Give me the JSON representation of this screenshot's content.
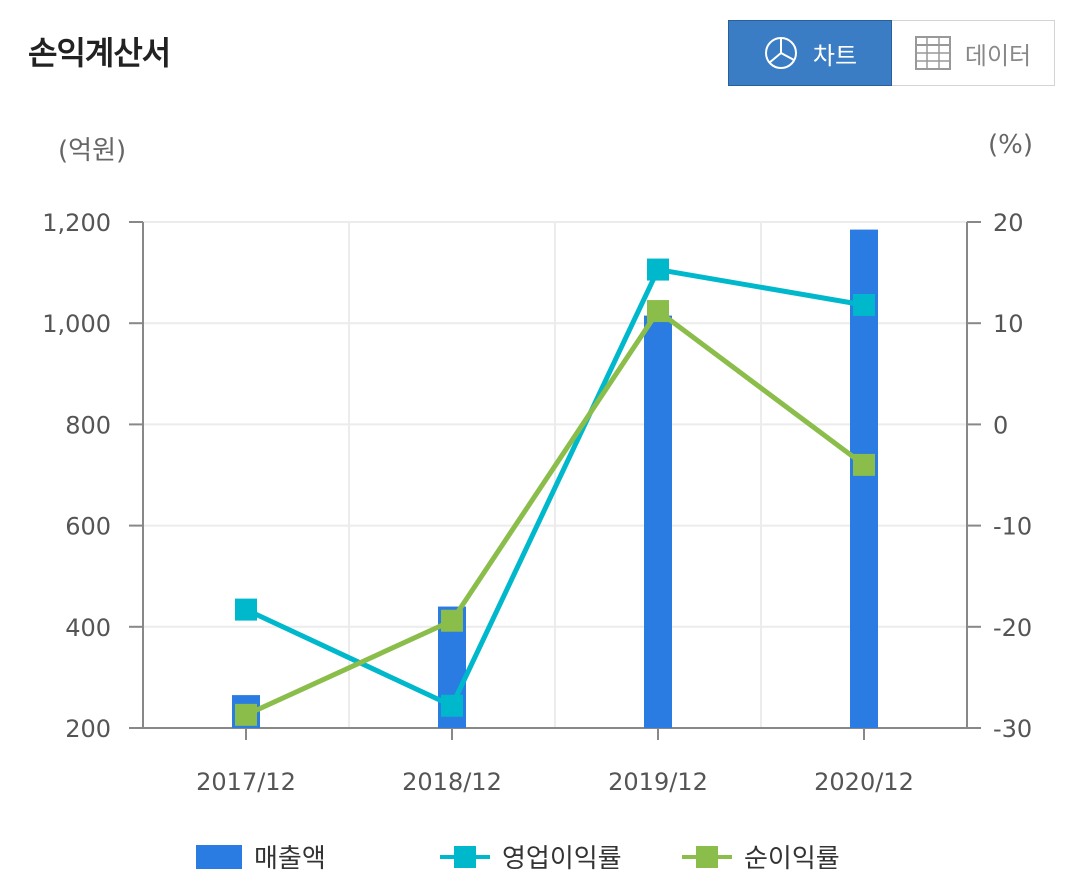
{
  "header": {
    "title": "손익계산서",
    "chart_tab_label": "차트",
    "data_tab_label": "데이터",
    "chart_tab_icon": "pie-chart-icon",
    "data_tab_icon": "table-grid-icon"
  },
  "colors": {
    "revenue": "#2a7be2",
    "operating_margin": "#00b8cc",
    "net_margin": "#8bbd4a",
    "active_tab": "#3a7dc4"
  },
  "chart_data": {
    "type": "bar",
    "categories": [
      "2017/12",
      "2018/12",
      "2019/12",
      "2020/12"
    ],
    "left_axis": {
      "unit": "(억원)",
      "range": [
        200,
        1200
      ],
      "ticks": [
        200,
        400,
        600,
        800,
        1000,
        1200
      ],
      "tick_labels": [
        "200",
        "400",
        "600",
        "800",
        "1,000",
        "1,200"
      ]
    },
    "right_axis": {
      "unit": "(%)",
      "range": [
        -30,
        20
      ],
      "ticks": [
        -30,
        -20,
        -10,
        0,
        10,
        20
      ],
      "tick_labels": [
        "-30",
        "-20",
        "-10",
        "0",
        "10",
        "20"
      ]
    },
    "series": [
      {
        "name": "매출액",
        "type": "bar",
        "axis": "left",
        "values": [
          265,
          440,
          1015,
          1185
        ]
      },
      {
        "name": "영업이익률",
        "type": "line",
        "axis": "right",
        "values": [
          -18.3,
          -27.8,
          15.3,
          11.8
        ]
      },
      {
        "name": "순이익률",
        "type": "line",
        "axis": "right",
        "values": [
          -28.7,
          -19.4,
          11.2,
          -4.0
        ]
      }
    ],
    "grid": true,
    "legend_position": "bottom"
  }
}
